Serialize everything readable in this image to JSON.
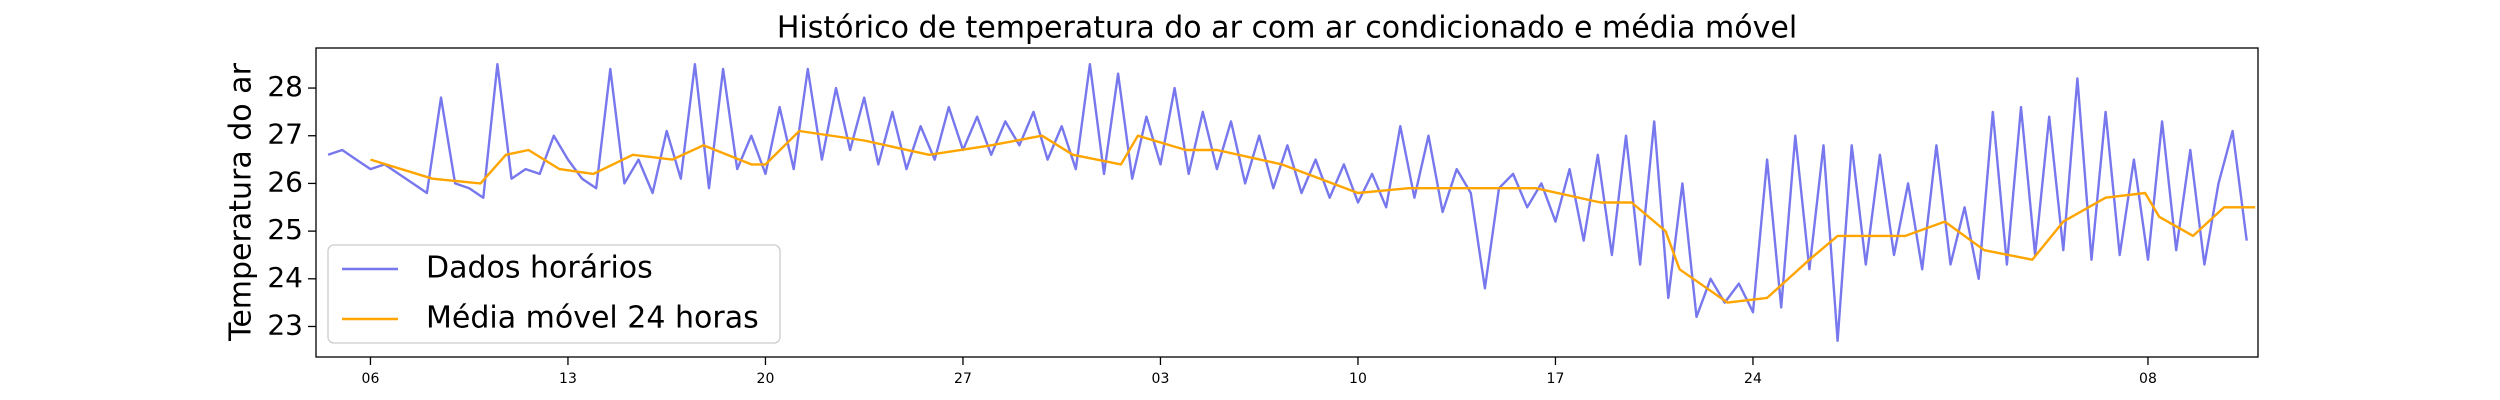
{
  "chart_data": {
    "type": "line",
    "title": "Histórico de temperatura do ar com ar condicionado e média móvel",
    "y_label": "Temperatura do ar",
    "xlim": [
      -1.93,
      66.9
    ],
    "ylim": [
      22.36,
      28.84
    ],
    "xticks": [
      {
        "value": 0,
        "label": "06"
      },
      {
        "value": 7,
        "label": "13"
      },
      {
        "value": 14,
        "label": "20"
      },
      {
        "value": 21,
        "label": "27"
      },
      {
        "value": 28,
        "label": "03"
      },
      {
        "value": 35,
        "label": "10"
      },
      {
        "value": 42,
        "label": "17"
      },
      {
        "value": 49,
        "label": "24"
      },
      {
        "value": 63,
        "label": "08"
      }
    ],
    "yticks": [
      23,
      24,
      25,
      26,
      27,
      28
    ],
    "grid": false,
    "legend": "lower left",
    "series": [
      {
        "name": "Dados horários",
        "color": "#7777ee",
        "x": [
          -1.5,
          -1,
          -0.5,
          0,
          0.5,
          1,
          1.5,
          2,
          2.5,
          3,
          3.5,
          4,
          4.5,
          5,
          5.5,
          6,
          6.5,
          7,
          7.5,
          8,
          8.5,
          9,
          9.5,
          10,
          10.5,
          11,
          11.5,
          12,
          12.5,
          13,
          13.5,
          14,
          14.5,
          15,
          15.5,
          16,
          16.5,
          17,
          17.5,
          18,
          18.5,
          19,
          19.5,
          20,
          20.5,
          21,
          21.5,
          22,
          22.5,
          23,
          23.5,
          24,
          24.5,
          25,
          25.5,
          26,
          26.5,
          27,
          27.5,
          28,
          28.5,
          29,
          29.5,
          30,
          30.5,
          31,
          31.5,
          32,
          32.5,
          33,
          33.5,
          34,
          34.5,
          35,
          35.5,
          36,
          36.5,
          37,
          37.5,
          38,
          38.5,
          39,
          39.5,
          40,
          40.5,
          41,
          41.5,
          42,
          42.5,
          43,
          43.5,
          44,
          44.5,
          45,
          45.5,
          46,
          46.5,
          47,
          47.5,
          48,
          48.5,
          49,
          49.5,
          50,
          50.5,
          51,
          51.5,
          52,
          52.5,
          53,
          53.5,
          54,
          54.5,
          55,
          55.5,
          56,
          56.5,
          57,
          57.5,
          58,
          58.5,
          59,
          59.5,
          60,
          60.5,
          61,
          61.5,
          62,
          62.5,
          63,
          63.5,
          64,
          64.5,
          65,
          65.5,
          66,
          66.5
        ],
        "values": [
          26.6,
          26.7,
          26.5,
          26.3,
          26.4,
          26.2,
          26.0,
          25.8,
          27.8,
          26.0,
          25.9,
          25.7,
          28.5,
          26.1,
          26.3,
          26.2,
          27.0,
          26.5,
          26.1,
          25.9,
          28.4,
          26.0,
          26.5,
          25.8,
          27.1,
          26.1,
          28.5,
          25.9,
          28.4,
          26.3,
          27.0,
          26.2,
          27.6,
          26.3,
          28.4,
          26.5,
          28.0,
          26.7,
          27.8,
          26.4,
          27.5,
          26.3,
          27.2,
          26.5,
          27.6,
          26.7,
          27.4,
          26.6,
          27.3,
          26.8,
          27.5,
          26.5,
          27.2,
          26.3,
          28.5,
          26.2,
          28.3,
          26.1,
          27.4,
          26.4,
          28.0,
          26.2,
          27.5,
          26.3,
          27.3,
          26.0,
          27.0,
          25.9,
          26.8,
          25.8,
          26.5,
          25.7,
          26.4,
          25.6,
          26.2,
          25.5,
          27.2,
          25.7,
          27.0,
          25.4,
          26.3,
          25.8,
          23.8,
          25.9,
          26.2,
          25.5,
          26.0,
          25.2,
          26.3,
          24.8,
          26.6,
          24.5,
          27.0,
          24.3,
          27.3,
          23.6,
          26.0,
          23.2,
          24.0,
          23.5,
          23.9,
          23.3,
          26.5,
          23.4,
          27.0,
          24.2,
          26.8,
          22.7,
          26.8,
          24.3,
          26.6,
          24.5,
          26.0,
          24.2,
          26.8,
          24.3,
          25.5,
          24.0,
          27.5,
          24.3,
          27.6,
          24.5,
          27.4,
          24.6,
          28.2,
          24.4,
          27.5,
          24.5,
          26.5,
          24.4,
          27.3,
          24.6,
          26.7,
          24.3,
          26.0,
          27.1,
          24.8
        ]
      },
      {
        "name": "Média móvel 24 horas",
        "color": "#ffa500",
        "x": [
          0,
          2.2,
          3.9,
          4.8,
          5.6,
          6.7,
          7.9,
          9.3,
          10.7,
          11.8,
          13.5,
          14,
          15.2,
          17.5,
          19.8,
          22,
          23.8,
          24.9,
          26.6,
          27.2,
          28.9,
          30,
          32.3,
          35,
          36.8,
          41.3,
          43.6,
          44.7,
          45.9,
          46.4,
          48.1,
          49.5,
          51,
          52,
          54.4,
          55.8,
          57.2,
          58.9,
          60,
          61.5,
          62.9,
          63.4,
          64.6,
          65.7,
          66.8
        ],
        "values": [
          26.5,
          26.1,
          26.0,
          26.6,
          26.7,
          26.3,
          26.2,
          26.6,
          26.5,
          26.8,
          26.4,
          26.4,
          27.1,
          26.9,
          26.6,
          26.8,
          27.0,
          26.6,
          26.4,
          27.0,
          26.7,
          26.7,
          26.4,
          25.8,
          25.9,
          25.9,
          25.6,
          25.6,
          25.0,
          24.2,
          23.5,
          23.6,
          24.4,
          24.9,
          24.9,
          25.2,
          24.6,
          24.4,
          25.2,
          25.7,
          25.8,
          25.3,
          24.9,
          25.5,
          25.5
        ]
      }
    ]
  }
}
